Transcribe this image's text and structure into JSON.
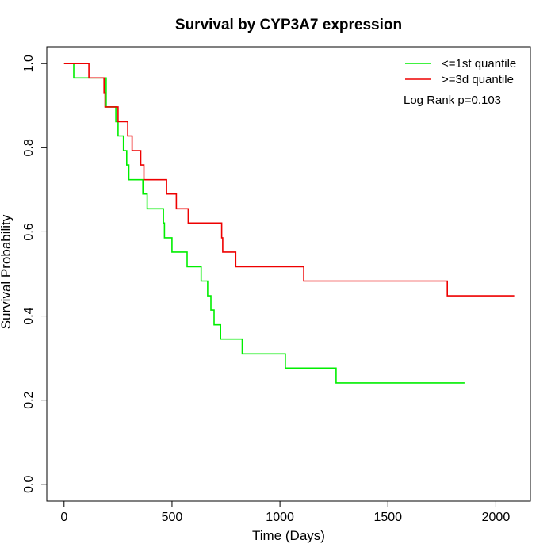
{
  "chart_data": {
    "type": "line",
    "title": "Survival by CYP3A7 expression",
    "xlabel": "Time (Days)",
    "ylabel": "Survival Probability",
    "xlim": [
      -80,
      2160
    ],
    "ylim": [
      -0.04,
      1.04
    ],
    "xticks": [
      0,
      500,
      1000,
      1500,
      2000
    ],
    "yticks": [
      0.0,
      0.2,
      0.4,
      0.6,
      0.8,
      1.0
    ],
    "xtick_labels": [
      "0",
      "500",
      "1000",
      "1500",
      "2000"
    ],
    "ytick_labels": [
      "0.0",
      "0.2",
      "0.4",
      "0.6",
      "0.8",
      "1.0"
    ],
    "grid": false,
    "legend_position": "top-right",
    "annotation": "Log Rank p=0.103",
    "series": [
      {
        "name": "<=1st quantile",
        "color": "#00ee00",
        "steps": [
          [
            0,
            1.0
          ],
          [
            45,
            0.966
          ],
          [
            195,
            0.897
          ],
          [
            240,
            0.862
          ],
          [
            250,
            0.828
          ],
          [
            275,
            0.793
          ],
          [
            290,
            0.759
          ],
          [
            300,
            0.724
          ],
          [
            365,
            0.69
          ],
          [
            385,
            0.655
          ],
          [
            460,
            0.621
          ],
          [
            465,
            0.586
          ],
          [
            500,
            0.552
          ],
          [
            570,
            0.517
          ],
          [
            635,
            0.483
          ],
          [
            665,
            0.448
          ],
          [
            680,
            0.414
          ],
          [
            695,
            0.379
          ],
          [
            725,
            0.345
          ],
          [
            825,
            0.31
          ],
          [
            1025,
            0.276
          ],
          [
            1260,
            0.241
          ],
          [
            1855,
            0.241
          ]
        ]
      },
      {
        "name": ">=3d quantile",
        "color": "#ee0000",
        "steps": [
          [
            0,
            1.0
          ],
          [
            115,
            0.966
          ],
          [
            185,
            0.931
          ],
          [
            190,
            0.897
          ],
          [
            250,
            0.862
          ],
          [
            295,
            0.828
          ],
          [
            315,
            0.793
          ],
          [
            355,
            0.759
          ],
          [
            370,
            0.724
          ],
          [
            475,
            0.69
          ],
          [
            520,
            0.655
          ],
          [
            575,
            0.621
          ],
          [
            730,
            0.586
          ],
          [
            735,
            0.552
          ],
          [
            795,
            0.517
          ],
          [
            1110,
            0.483
          ],
          [
            1775,
            0.448
          ],
          [
            2085,
            0.448
          ]
        ]
      }
    ]
  }
}
